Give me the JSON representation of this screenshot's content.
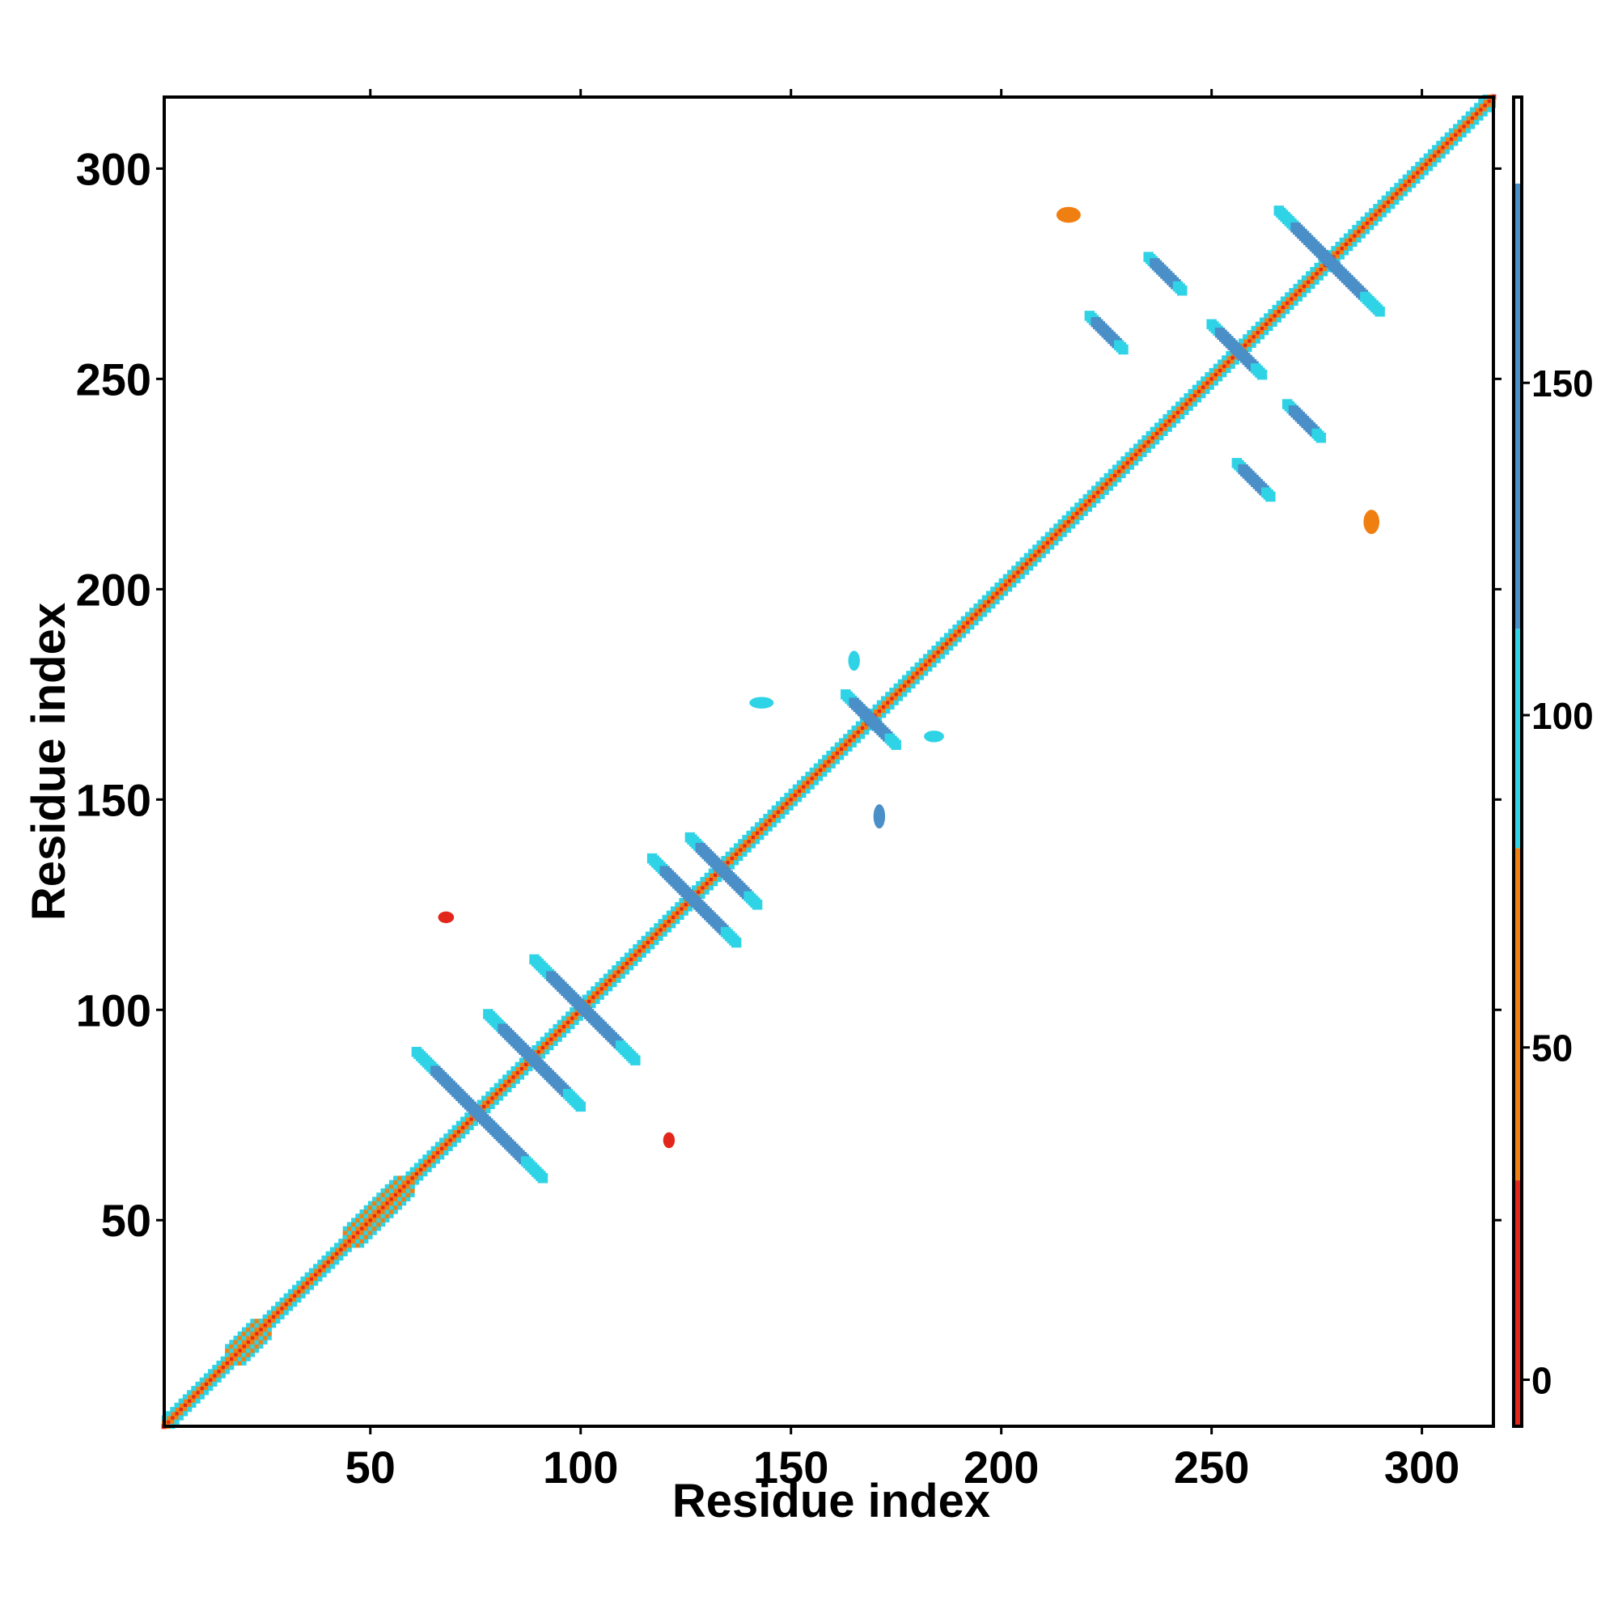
{
  "chart_data": {
    "type": "heatmap",
    "title": "",
    "xlabel": "Residue index",
    "ylabel": "Residue index",
    "xlim": [
      1,
      317
    ],
    "ylim": [
      1,
      317
    ],
    "x_ticks": [
      50,
      100,
      150,
      200,
      250,
      300
    ],
    "y_ticks": [
      50,
      100,
      150,
      200,
      250,
      300
    ],
    "grid": false,
    "colorbar": {
      "ticks": [
        0,
        50,
        100,
        150
      ],
      "range": [
        -7,
        193
      ],
      "segments": [
        {
          "from": -7,
          "to": 30,
          "color": "#e3261c"
        },
        {
          "from": 30,
          "to": 80,
          "color": "#f07f12"
        },
        {
          "from": 80,
          "to": 113,
          "color": "#2fd3e6"
        },
        {
          "from": 113,
          "to": 180,
          "color": "#4a8fc7"
        },
        {
          "from": 180,
          "to": 193,
          "color": "#ffffff"
        }
      ]
    },
    "features": [
      {
        "kind": "diagonal",
        "from": 1,
        "to": 317,
        "value": 0,
        "color": "#e3261c"
      },
      {
        "kind": "diagonal-band",
        "from": 1,
        "to": 317,
        "offset": 1,
        "value": 45,
        "color": "#f07f12"
      },
      {
        "kind": "diagonal-band",
        "from": 1,
        "to": 317,
        "offset": 2,
        "value": 95,
        "color": "#2fd3e6"
      },
      {
        "kind": "helix-block",
        "from": 44,
        "to": 60,
        "value": 40,
        "color": "#f07f12"
      },
      {
        "kind": "helix-block",
        "from": 16,
        "to": 26,
        "value": 40,
        "color": "#f07f12"
      },
      {
        "kind": "antiparallel",
        "center": [
          76,
          75
        ],
        "half_length": 15,
        "value": 140,
        "color": "#4a8fc7"
      },
      {
        "kind": "antiparallel",
        "center": [
          89,
          88
        ],
        "half_length": 11,
        "value": 140,
        "color": "#4a8fc7"
      },
      {
        "kind": "antiparallel",
        "center": [
          101,
          100
        ],
        "half_length": 12,
        "value": 140,
        "color": "#4a8fc7"
      },
      {
        "kind": "antiparallel",
        "center": [
          127,
          126
        ],
        "half_length": 10,
        "value": 140,
        "color": "#4a8fc7"
      },
      {
        "kind": "antiparallel",
        "center": [
          134,
          133
        ],
        "half_length": 8,
        "value": 140,
        "color": "#4a8fc7"
      },
      {
        "kind": "antiparallel",
        "center": [
          169,
          169
        ],
        "half_length": 6,
        "value": 140,
        "color": "#4a8fc7"
      },
      {
        "kind": "antiparallel",
        "center": [
          256,
          257
        ],
        "half_length": 6,
        "value": 140,
        "color": "#4a8fc7"
      },
      {
        "kind": "antiparallel",
        "center": [
          278,
          278
        ],
        "half_length": 12,
        "value": 140,
        "color": "#4a8fc7"
      },
      {
        "kind": "patch",
        "center": [
          68,
          122
        ],
        "size": [
          3,
          2
        ],
        "value": 0,
        "color": "#e3261c"
      },
      {
        "kind": "patch",
        "center": [
          121,
          69
        ],
        "size": [
          2,
          3
        ],
        "value": 0,
        "color": "#e3261c"
      },
      {
        "kind": "patch",
        "center": [
          216,
          289
        ],
        "size": [
          5,
          3
        ],
        "value": 40,
        "color": "#f07f12"
      },
      {
        "kind": "patch",
        "center": [
          288,
          216
        ],
        "size": [
          3,
          5
        ],
        "value": 40,
        "color": "#f07f12"
      },
      {
        "kind": "antiparallel",
        "center": [
          225,
          261
        ],
        "half_length": 4,
        "value": 140,
        "color": "#4a8fc7"
      },
      {
        "kind": "antiparallel",
        "center": [
          260,
          226
        ],
        "half_length": 4,
        "value": 140,
        "color": "#4a8fc7"
      },
      {
        "kind": "antiparallel",
        "center": [
          239,
          275
        ],
        "half_length": 4,
        "value": 140,
        "color": "#4a8fc7"
      },
      {
        "kind": "antiparallel",
        "center": [
          272,
          240
        ],
        "half_length": 4,
        "value": 140,
        "color": "#4a8fc7"
      },
      {
        "kind": "patch",
        "center": [
          143,
          173
        ],
        "size": [
          5,
          2
        ],
        "value": 95,
        "color": "#2fd3e6"
      },
      {
        "kind": "patch",
        "center": [
          171,
          146
        ],
        "size": [
          2,
          5
        ],
        "value": 140,
        "color": "#4a8fc7"
      },
      {
        "kind": "patch",
        "center": [
          165,
          183
        ],
        "size": [
          2,
          4
        ],
        "value": 95,
        "color": "#2fd3e6"
      },
      {
        "kind": "patch",
        "center": [
          184,
          165
        ],
        "size": [
          4,
          2
        ],
        "value": 95,
        "color": "#2fd3e6"
      }
    ]
  }
}
